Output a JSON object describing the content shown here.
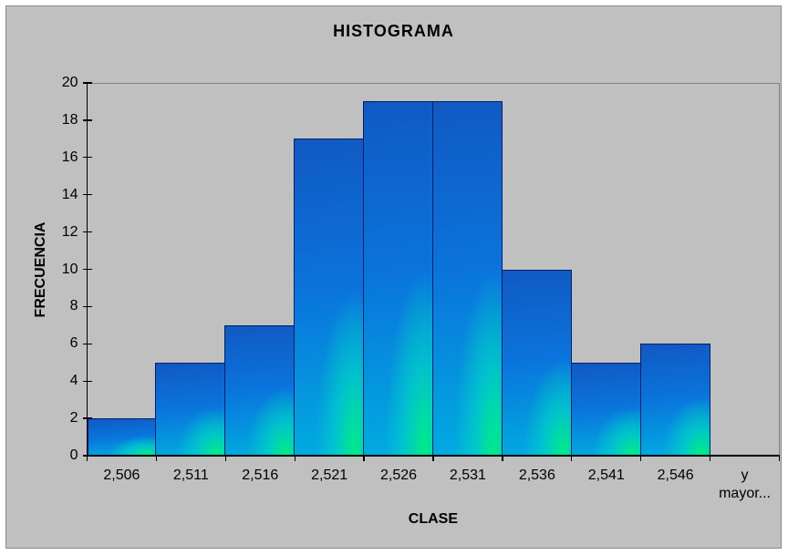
{
  "chart_data": {
    "type": "bar",
    "title": "HISTOGRAMA",
    "xlabel": "CLASE",
    "ylabel": "FRECUENCIA",
    "categories": [
      "2,506",
      "2,511",
      "2,516",
      "2,521",
      "2,526",
      "2,531",
      "2,536",
      "2,541",
      "2,546",
      "y mayor..."
    ],
    "values": [
      2,
      5,
      7,
      17,
      19,
      19,
      10,
      5,
      6,
      0
    ],
    "ylim": [
      0,
      20
    ],
    "ytick_step": 2,
    "bar_gap": 0,
    "grid": false,
    "legend": "none",
    "colors": {
      "panel_background": "#c0c0c0",
      "bar_gradient_top": "#1159c2",
      "bar_gradient_mid": "#0a74dc",
      "bar_gradient_bottom": "#00ace0",
      "bar_glow_corner": "#00e88e",
      "bar_border": "#001f6b",
      "axis": "#000000",
      "plot_border": "#808080",
      "text": "#000000"
    }
  }
}
